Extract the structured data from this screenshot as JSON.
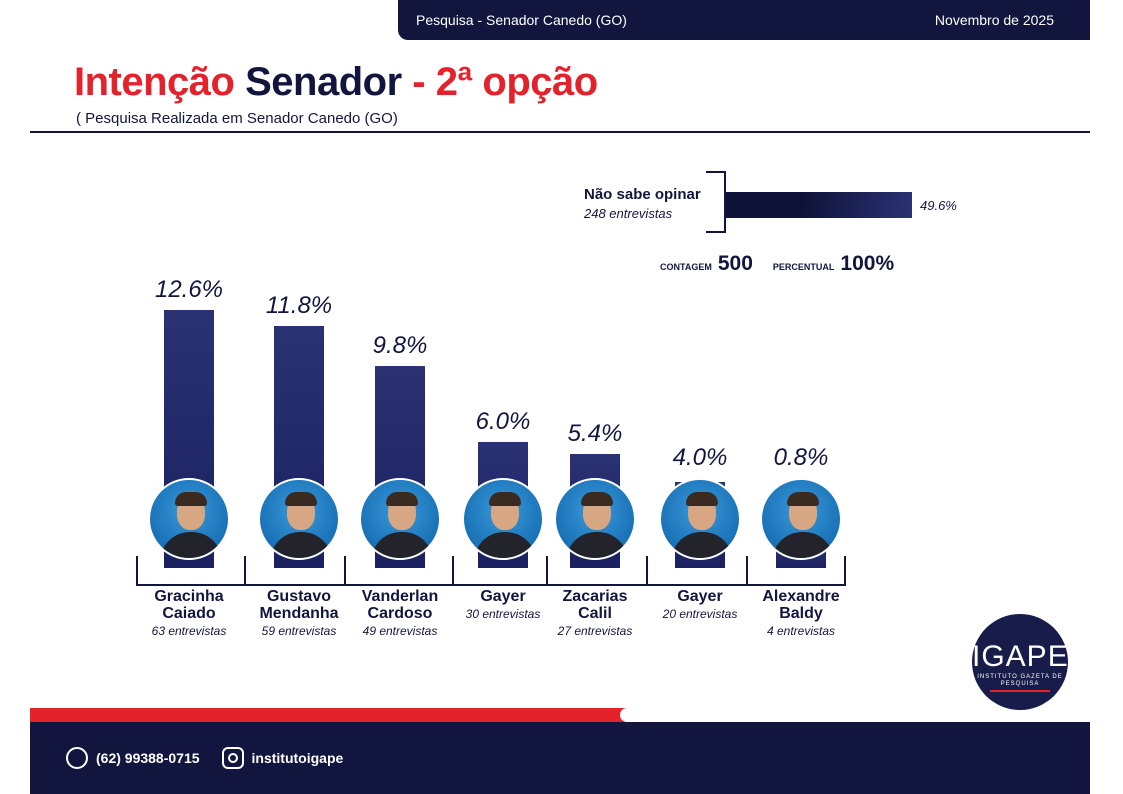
{
  "header": {
    "survey": "Pesquisa - Senador Canedo (GO)",
    "date": "Novembro de 2025"
  },
  "title": {
    "part1": "Intenção",
    "part2": "Senador",
    "part3": "- 2ª opção"
  },
  "subtitle": "( Pesquisa Realizada em Senador Canedo (GO)",
  "nao_sabe": {
    "label": "Não sabe opinar",
    "count": "248 entrevistas",
    "pct": "49.6%"
  },
  "totals": {
    "count_label": "CONTAGEM",
    "count": "500",
    "pct_label": "PERCENTUAL",
    "pct": "100%"
  },
  "chart_data": {
    "type": "bar",
    "title": "Intenção Senador - 2ª opção",
    "ylabel": "%",
    "ylim": [
      0,
      14
    ],
    "categories": [
      "Gracinha Caiado",
      "Gustavo Mendanha",
      "Vanderlan Cardoso",
      "Gayer",
      "Zacarias Calil",
      "Gayer",
      "Alexandre Baldy"
    ],
    "names": [
      [
        "Gracinha",
        "Caiado"
      ],
      [
        "Gustavo",
        "Mendanha"
      ],
      [
        "Vanderlan",
        "Cardoso"
      ],
      [
        "Gayer",
        ""
      ],
      [
        "Zacarias",
        "Calil"
      ],
      [
        "Gayer",
        ""
      ],
      [
        "Alexandre",
        "Baldy"
      ]
    ],
    "values": [
      12.6,
      11.8,
      9.8,
      6.0,
      5.4,
      4.0,
      0.8
    ],
    "labels": [
      "12.6%",
      "11.8%",
      "9.8%",
      "6.0%",
      "5.4%",
      "4.0%",
      "0.8%"
    ],
    "interviews": [
      "63 entrevistas",
      "59 entrevistas",
      "49 entrevistas",
      "30 entrevistas",
      "27 entrevistas",
      "20 entrevistas",
      "4 entrevistas"
    ]
  },
  "logo": {
    "name": "IGAPE",
    "tagline": "INSTITUTO GAZETA DE PESQUISA"
  },
  "footer": {
    "phone": "(62) 99388-0715",
    "instagram": "institutoigape"
  },
  "colors": {
    "red": "#e3222b",
    "navy": "#12163f"
  }
}
